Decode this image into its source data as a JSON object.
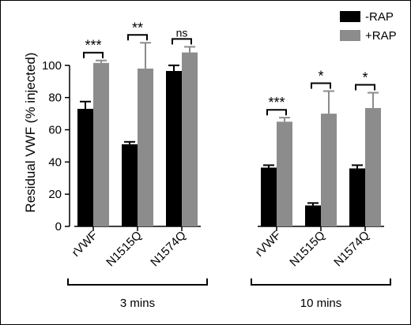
{
  "chart_data": {
    "type": "bar",
    "title": "",
    "xlabel": "",
    "ylabel": "Residual VWF (% injected)",
    "ylim": [
      0,
      120
    ],
    "yticks": [
      0,
      20,
      40,
      60,
      80,
      100
    ],
    "grid": false,
    "legend_position": "top-right",
    "series": [
      {
        "name": "-RAP",
        "color": "#000000"
      },
      {
        "name": "+RAP",
        "color": "#8c8c8c"
      }
    ],
    "groups": [
      {
        "label": "3 mins",
        "categories": [
          {
            "name": "rVWF",
            "values": [
              73,
              101.5
            ],
            "errors": [
              4.5,
              1.5
            ],
            "significance": "***"
          },
          {
            "name": "N1515Q",
            "values": [
              51,
              98
            ],
            "errors": [
              1.5,
              16
            ],
            "significance": "**"
          },
          {
            "name": "N1574Q",
            "values": [
              96.5,
              108
            ],
            "errors": [
              3.5,
              3.5
            ],
            "significance": "ns"
          }
        ]
      },
      {
        "label": "10 mins",
        "categories": [
          {
            "name": "rVWF",
            "values": [
              36.5,
              65
            ],
            "errors": [
              1.5,
              2.5
            ],
            "significance": "***"
          },
          {
            "name": "N1515Q",
            "values": [
              13,
              70
            ],
            "errors": [
              1.5,
              14
            ],
            "significance": "*"
          },
          {
            "name": "N1574Q",
            "values": [
              36,
              73.5
            ],
            "errors": [
              2,
              9.5
            ],
            "significance": "*"
          }
        ]
      }
    ]
  }
}
